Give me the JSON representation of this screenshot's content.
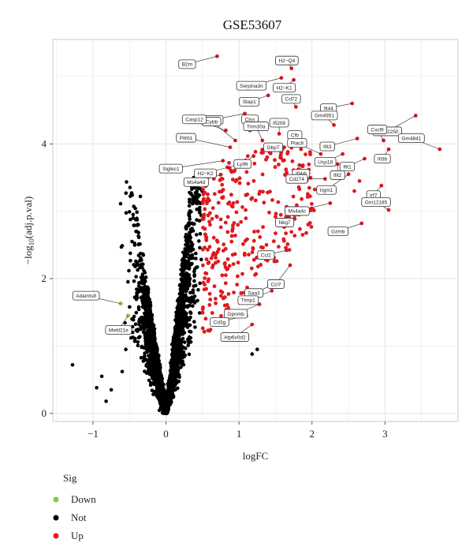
{
  "chart_data": {
    "type": "scatter",
    "title": "GSE53607",
    "xlabel": "logFC",
    "ylabel_main": "−log",
    "ylabel_sub": "10",
    "ylabel_rest": "(adj.p.val)",
    "xlim": [
      -1.55,
      4.0
    ],
    "ylim": [
      -0.12,
      5.55
    ],
    "xticks": [
      -1,
      0,
      1,
      2,
      3
    ],
    "yticks": [
      0,
      2,
      4
    ],
    "grid": true,
    "legend": {
      "title": "Sig",
      "position": "bottom-left",
      "entries": [
        {
          "name": "Down",
          "color": "#8dc63f"
        },
        {
          "name": "Not",
          "color": "#000000"
        },
        {
          "name": "Up",
          "color": "#e0191f"
        }
      ]
    },
    "series": [
      {
        "name": "Down",
        "color": "#8dc63f",
        "points": [
          [
            -0.62,
            1.63
          ],
          [
            -0.52,
            1.45
          ]
        ]
      },
      {
        "name": "Up",
        "color": "#e0191f",
        "points": [
          [
            0.7,
            5.3
          ],
          [
            1.58,
            4.98
          ],
          [
            1.72,
            5.12
          ],
          [
            1.75,
            4.95
          ],
          [
            1.4,
            4.72
          ],
          [
            1.78,
            4.55
          ],
          [
            2.55,
            4.6
          ],
          [
            3.42,
            4.42
          ],
          [
            1.08,
            4.45
          ],
          [
            1.15,
            4.2
          ],
          [
            0.82,
            4.2
          ],
          [
            0.95,
            4.05
          ],
          [
            1.32,
            4.05
          ],
          [
            1.55,
            4.15
          ],
          [
            2.3,
            4.28
          ],
          [
            2.62,
            4.08
          ],
          [
            2.98,
            4.05
          ],
          [
            3.05,
            3.92
          ],
          [
            3.75,
            3.92
          ],
          [
            0.88,
            3.95
          ],
          [
            1.2,
            3.82
          ],
          [
            1.62,
            3.95
          ],
          [
            1.85,
            3.92
          ],
          [
            2.12,
            3.85
          ],
          [
            2.42,
            3.85
          ],
          [
            2.72,
            3.78
          ],
          [
            0.78,
            3.75
          ],
          [
            0.95,
            3.68
          ],
          [
            2.35,
            3.7
          ],
          [
            2.5,
            3.55
          ],
          [
            2.18,
            3.48
          ],
          [
            2.65,
            3.45
          ],
          [
            2.95,
            3.38
          ],
          [
            2.58,
            3.3
          ],
          [
            3.05,
            3.02
          ],
          [
            2.25,
            3.12
          ],
          [
            2.68,
            2.82
          ],
          [
            1.82,
            2.95
          ],
          [
            1.65,
            2.42
          ],
          [
            1.7,
            2.2
          ],
          [
            1.55,
            1.95
          ],
          [
            1.45,
            1.82
          ],
          [
            1.28,
            1.62
          ],
          [
            1.1,
            1.45
          ],
          [
            1.18,
            1.32
          ]
        ]
      },
      {
        "name": "Not",
        "color": "#000000",
        "points": []
      }
    ],
    "labels": [
      {
        "text": "B2m",
        "x": 0.7,
        "y": 5.3
      },
      {
        "text": "H2−Q4",
        "x": 1.72,
        "y": 5.12
      },
      {
        "text": "Serpina3n",
        "x": 1.58,
        "y": 4.98
      },
      {
        "text": "H2−K1",
        "x": 1.75,
        "y": 4.95
      },
      {
        "text": "Stap1",
        "x": 1.4,
        "y": 4.72
      },
      {
        "text": "H2−Q5",
        "x": 1.08,
        "y": 4.45
      },
      {
        "text": "Cd72",
        "x": 1.78,
        "y": 4.55
      },
      {
        "text": "Ifi44",
        "x": 2.55,
        "y": 4.6
      },
      {
        "text": "Gm12250",
        "x": 3.42,
        "y": 4.42
      },
      {
        "text": "Cybb",
        "x": 0.95,
        "y": 4.05
      },
      {
        "text": "Casp12",
        "x": 0.82,
        "y": 4.2
      },
      {
        "text": "Ctss",
        "x": 1.15,
        "y": 4.2
      },
      {
        "text": "Ifi208",
        "x": 1.55,
        "y": 4.15
      },
      {
        "text": "Gm4951",
        "x": 2.3,
        "y": 4.28
      },
      {
        "text": "Cxcl9",
        "x": 2.98,
        "y": 4.05
      },
      {
        "text": "Pilrb1",
        "x": 0.88,
        "y": 3.95
      },
      {
        "text": "Trim30a",
        "x": 1.32,
        "y": 4.05
      },
      {
        "text": "Cfb",
        "x": 1.85,
        "y": 3.92
      },
      {
        "text": "Ifit3",
        "x": 2.62,
        "y": 4.08
      },
      {
        "text": "Ifi3b",
        "x": 3.05,
        "y": 3.92
      },
      {
        "text": "Gm4841",
        "x": 3.75,
        "y": 3.92
      },
      {
        "text": "Siglec1",
        "x": 0.78,
        "y": 3.75
      },
      {
        "text": "H2−K2",
        "x": 0.95,
        "y": 3.68
      },
      {
        "text": "Ly96",
        "x": 1.2,
        "y": 3.82
      },
      {
        "text": "Gbp7",
        "x": 1.62,
        "y": 3.95
      },
      {
        "text": "Plac8",
        "x": 2.12,
        "y": 3.85
      },
      {
        "text": "Usp18",
        "x": 2.42,
        "y": 3.85
      },
      {
        "text": "Ifit1",
        "x": 2.72,
        "y": 3.78
      },
      {
        "text": "Ifi44l",
        "x": 1.85,
        "y": 3.7
      },
      {
        "text": "Ms4a4d",
        "x": 0.78,
        "y": 3.55
      },
      {
        "text": "Cd274",
        "x": 2.18,
        "y": 3.48
      },
      {
        "text": "Ifit2",
        "x": 2.35,
        "y": 3.7
      },
      {
        "text": "Irgm1",
        "x": 2.5,
        "y": 3.55
      },
      {
        "text": "Irf7",
        "x": 2.95,
        "y": 3.38
      },
      {
        "text": "Ms4a4c",
        "x": 2.25,
        "y": 3.12
      },
      {
        "text": "Gm12185",
        "x": 3.05,
        "y": 3.02
      },
      {
        "text": "Nkg7",
        "x": 1.82,
        "y": 2.95
      },
      {
        "text": "Gzmb",
        "x": 2.68,
        "y": 2.82
      },
      {
        "text": "Ccl2",
        "x": 1.65,
        "y": 2.42
      },
      {
        "text": "Ccl7",
        "x": 1.7,
        "y": 2.2
      },
      {
        "text": "Saa3",
        "x": 1.55,
        "y": 1.95
      },
      {
        "text": "Timp1",
        "x": 1.45,
        "y": 1.82
      },
      {
        "text": "Gpnmb",
        "x": 1.28,
        "y": 1.62
      },
      {
        "text": "Cd3g",
        "x": 1.1,
        "y": 1.45
      },
      {
        "text": "Atp6v0d2",
        "x": 1.18,
        "y": 1.32
      },
      {
        "text": "Adamts8",
        "x": -0.62,
        "y": 1.63
      },
      {
        "text": "Mettl21e",
        "x": -0.52,
        "y": 1.45
      }
    ]
  }
}
